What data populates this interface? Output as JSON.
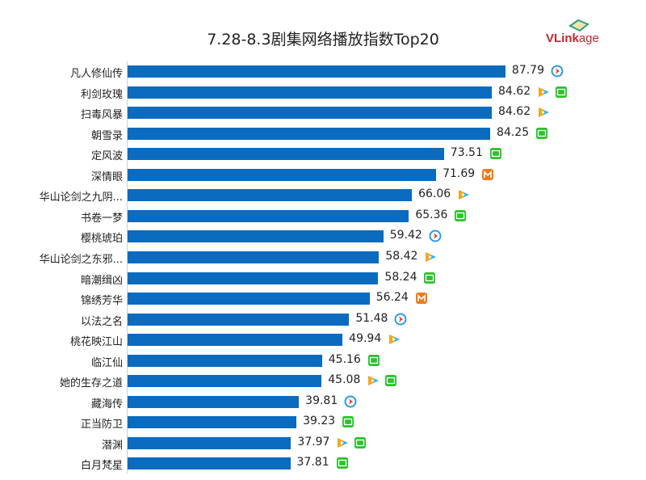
{
  "chart_data": {
    "type": "bar",
    "orientation": "horizontal",
    "title": "7.28-8.3剧集网络播放指数Top20",
    "xlim": [
      0,
      100
    ],
    "grid": false,
    "categories": [
      "凡人修仙传",
      "利剑玫瑰",
      "扫毒风暴",
      "朝雪录",
      "定风波",
      "深情眼",
      "华山论剑之九阴...",
      "书卷一梦",
      "樱桃琥珀",
      "华山论剑之东邪...",
      "暗潮缉凶",
      "锦绣芳华",
      "以法之名",
      "桃花映江山",
      "临江仙",
      "她的生存之道",
      "藏海传",
      "正当防卫",
      "潜渊",
      "白月梵星"
    ],
    "values": [
      87.79,
      84.62,
      84.62,
      84.25,
      73.51,
      71.69,
      66.06,
      65.36,
      59.42,
      58.42,
      58.24,
      56.24,
      51.48,
      49.94,
      45.16,
      45.08,
      39.81,
      39.23,
      37.97,
      37.81
    ],
    "platforms": [
      [
        "youku"
      ],
      [
        "tencent",
        "iqiyi"
      ],
      [
        "tencent"
      ],
      [
        "iqiyi"
      ],
      [
        "iqiyi"
      ],
      [
        "mango"
      ],
      [
        "tencent"
      ],
      [
        "iqiyi"
      ],
      [
        "youku"
      ],
      [
        "tencent"
      ],
      [
        "iqiyi"
      ],
      [
        "mango"
      ],
      [
        "youku"
      ],
      [
        "tencent"
      ],
      [
        "iqiyi"
      ],
      [
        "tencent",
        "iqiyi"
      ],
      [
        "youku"
      ],
      [
        "iqiyi"
      ],
      [
        "tencent",
        "iqiyi"
      ],
      [
        "iqiyi"
      ]
    ],
    "bar_color": "#0b6bbf"
  },
  "logo": {
    "text": "VLinkage"
  }
}
